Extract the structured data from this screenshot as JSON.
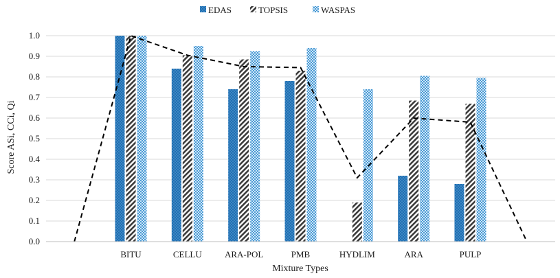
{
  "chart_data": {
    "type": "bar",
    "categories": [
      "BITU",
      "CELLU",
      "ARA-POL",
      "PMB",
      "HYDLIM",
      "ARA",
      "PULP"
    ],
    "series": [
      {
        "name": "EDAS",
        "values": [
          1.0,
          0.84,
          0.74,
          0.78,
          0.0,
          0.32,
          0.28
        ],
        "color": "#1f6fb3",
        "pattern": "dots-on-blue"
      },
      {
        "name": "TOPSIS",
        "values": [
          1.0,
          0.905,
          0.885,
          0.83,
          0.19,
          0.685,
          0.67
        ],
        "color": "#404040",
        "pattern": "diagonal-hatch"
      },
      {
        "name": "WASPAS",
        "values": [
          1.0,
          0.95,
          0.925,
          0.94,
          0.74,
          0.805,
          0.795
        ],
        "color": "#4a9ad4",
        "pattern": "dotted-light-blue"
      }
    ],
    "trendline": {
      "style": "dashed",
      "color": "#000000",
      "x": [
        0,
        1,
        2,
        3,
        4,
        5,
        6,
        7,
        8
      ],
      "y": [
        -0.01,
        1.0,
        0.905,
        0.85,
        0.845,
        0.31,
        0.6,
        0.58,
        -0.01
      ]
    },
    "xlabel": "Mixture Types",
    "ylabel": "Score ASi, CCi, Qi",
    "ylim": [
      0,
      1.0
    ],
    "yticks": [
      "0.0",
      "0.1",
      "0.2",
      "0.3",
      "0.4",
      "0.5",
      "0.6",
      "0.7",
      "0.8",
      "0.9",
      "1.0"
    ],
    "grid": true,
    "legend_position": "top-center"
  }
}
